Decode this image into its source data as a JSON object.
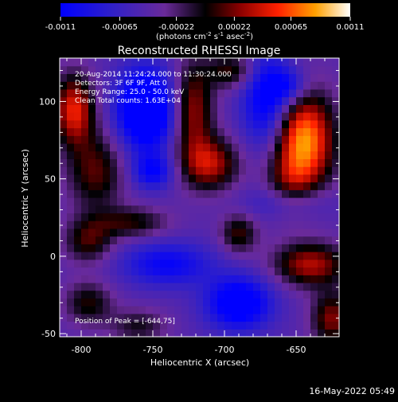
{
  "chart_data": {
    "type": "heatmap",
    "title": "Reconstructed RHESSI Image",
    "xlabel": "Heliocentric X (arcsec)",
    "ylabel": "Heliocentric Y (arcsec)",
    "xlim": [
      -815,
      -620
    ],
    "ylim": [
      -52,
      128
    ],
    "x_ticks": [
      -800,
      -750,
      -700,
      -650
    ],
    "y_ticks": [
      -50,
      0,
      50,
      100
    ],
    "colorbar": {
      "min": -0.0011,
      "max": 0.0011,
      "tick_labels": [
        "-0.0011",
        "-0.00065",
        "-0.00022",
        "0.00022",
        "0.00065",
        "0.0011"
      ],
      "tick_values": [
        -0.0011,
        -0.00065,
        -0.00022,
        0.00022,
        0.00065,
        0.0011
      ],
      "unit_label": "(photons cm",
      "unit_exp1": "-2",
      "unit_mid": " s",
      "unit_exp2": "-1",
      "unit_end": " asec",
      "unit_exp3": "-2",
      "unit_close": ")"
    },
    "annotations": [
      "20-Aug-2014 11:24:24.000 to 11:30:24.000",
      "Detectors: 3F 6F 9F, Att 0",
      "Energy Range: 25.0 - 50.0 keV",
      "Clean     Total counts: 1.63E+04"
    ],
    "peak_label": "Position of Peak = [-644,75]",
    "peak": {
      "x": -644,
      "y": 75
    },
    "blobs": [
      {
        "x": -645,
        "y": 75,
        "sx": 15,
        "sy": 22,
        "amp": 0.0013
      },
      {
        "x": -655,
        "y": 45,
        "sx": 12,
        "sy": 14,
        "amp": 0.0004
      },
      {
        "x": -805,
        "y": 95,
        "sx": 10,
        "sy": 16,
        "amp": 0.00095
      },
      {
        "x": -790,
        "y": 55,
        "sx": 14,
        "sy": 18,
        "amp": 0.0006
      },
      {
        "x": -710,
        "y": 60,
        "sx": 14,
        "sy": 12,
        "amp": 0.0008
      },
      {
        "x": -722,
        "y": 95,
        "sx": 10,
        "sy": 22,
        "amp": 0.00075
      },
      {
        "x": -690,
        "y": 15,
        "sx": 9,
        "sy": 9,
        "amp": 0.00055
      },
      {
        "x": -640,
        "y": -5,
        "sx": 18,
        "sy": 10,
        "amp": 0.0008
      },
      {
        "x": -625,
        "y": -40,
        "sx": 10,
        "sy": 12,
        "amp": 0.0007
      },
      {
        "x": -765,
        "y": 22,
        "sx": 18,
        "sy": 7,
        "amp": 0.0005
      },
      {
        "x": -795,
        "y": 10,
        "sx": 12,
        "sy": 10,
        "amp": 0.00055
      },
      {
        "x": -795,
        "y": -30,
        "sx": 12,
        "sy": 10,
        "amp": 0.0005
      },
      {
        "x": -760,
        "y": -45,
        "sx": 14,
        "sy": 8,
        "amp": 0.0004
      },
      {
        "x": -695,
        "y": 120,
        "sx": 12,
        "sy": 8,
        "amp": 0.00055
      },
      {
        "x": -755,
        "y": 95,
        "sx": 14,
        "sy": 18,
        "amp": -0.0012
      },
      {
        "x": -750,
        "y": 55,
        "sx": 10,
        "sy": 8,
        "amp": -0.0006
      },
      {
        "x": -670,
        "y": 100,
        "sx": 12,
        "sy": 22,
        "amp": -0.0008
      },
      {
        "x": -690,
        "y": -30,
        "sx": 16,
        "sy": 12,
        "amp": -0.0009
      },
      {
        "x": -655,
        "y": 35,
        "sx": 20,
        "sy": 8,
        "amp": -0.0004
      },
      {
        "x": -740,
        "y": -5,
        "sx": 22,
        "sy": 10,
        "amp": -0.0006
      },
      {
        "x": -655,
        "y": 110,
        "sx": 10,
        "sy": 8,
        "amp": -0.0005
      }
    ]
  },
  "footer": {
    "timestamp": "16-May-2022 05:49"
  }
}
